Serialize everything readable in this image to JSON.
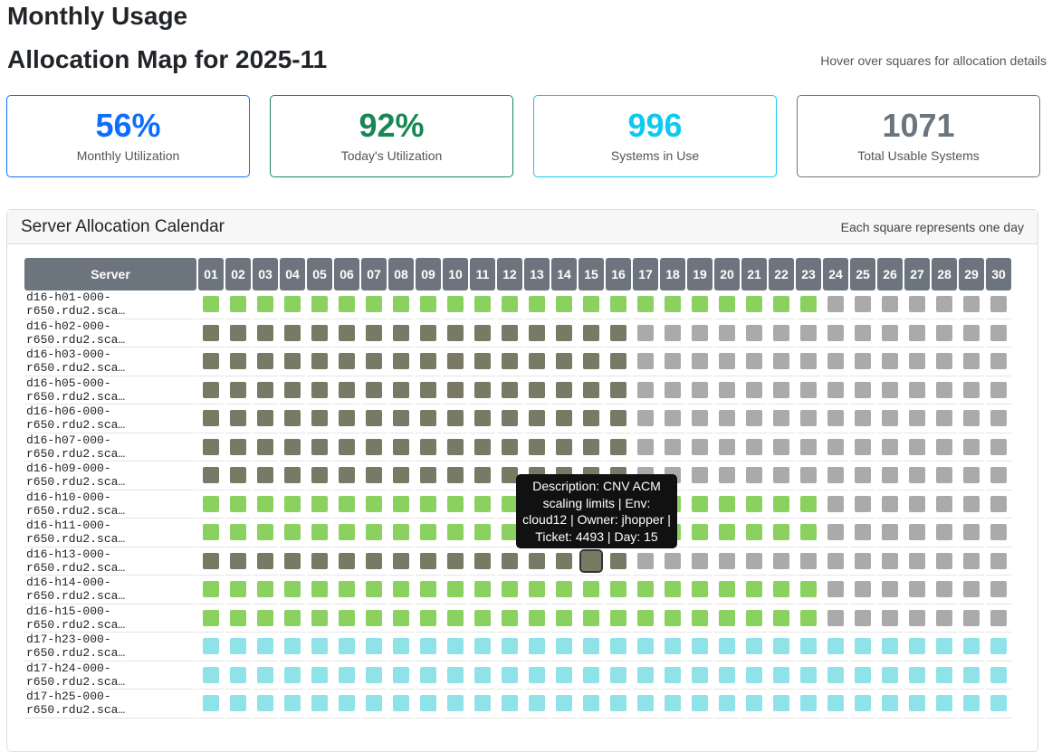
{
  "title": "Monthly Usage",
  "subtitle": "Allocation Map for 2025-11",
  "hint": "Hover over squares for allocation details",
  "cards": [
    {
      "value": "56%",
      "label": "Monthly Utilization",
      "color": "#0d6efd"
    },
    {
      "value": "92%",
      "label": "Today's Utilization",
      "color": "#198754"
    },
    {
      "value": "996",
      "label": "Systems in Use",
      "color": "#0dcaf0"
    },
    {
      "value": "1071",
      "label": "Total Usable Systems",
      "color": "#6c757d"
    }
  ],
  "panel": {
    "title": "Server Allocation Calendar",
    "note": "Each square represents one day"
  },
  "table": {
    "server_header": "Server",
    "days": [
      "01",
      "02",
      "03",
      "04",
      "05",
      "06",
      "07",
      "08",
      "09",
      "10",
      "11",
      "12",
      "13",
      "14",
      "15",
      "16",
      "17",
      "18",
      "19",
      "20",
      "21",
      "22",
      "23",
      "24",
      "25",
      "26",
      "27",
      "28",
      "29",
      "30"
    ],
    "rows": [
      {
        "name": "d16-h01-000-r650.rdu2.sca…",
        "type": "green",
        "days": 23
      },
      {
        "name": "d16-h02-000-r650.rdu2.sca…",
        "type": "gray",
        "days": 16
      },
      {
        "name": "d16-h03-000-r650.rdu2.sca…",
        "type": "gray",
        "days": 16
      },
      {
        "name": "d16-h05-000-r650.rdu2.sca…",
        "type": "gray",
        "days": 16
      },
      {
        "name": "d16-h06-000-r650.rdu2.sca…",
        "type": "gray",
        "days": 16
      },
      {
        "name": "d16-h07-000-r650.rdu2.sca…",
        "type": "gray",
        "days": 16
      },
      {
        "name": "d16-h09-000-r650.rdu2.sca…",
        "type": "gray",
        "days": 16
      },
      {
        "name": "d16-h10-000-r650.rdu2.sca…",
        "type": "green",
        "days": 23
      },
      {
        "name": "d16-h11-000-r650.rdu2.sca…",
        "type": "green",
        "days": 23
      },
      {
        "name": "d16-h13-000-r650.rdu2.sca…",
        "type": "gray",
        "days": 16,
        "hover": 15
      },
      {
        "name": "d16-h14-000-r650.rdu2.sca…",
        "type": "green",
        "days": 23
      },
      {
        "name": "d16-h15-000-r650.rdu2.sca…",
        "type": "green",
        "days": 23
      },
      {
        "name": "d17-h23-000-r650.rdu2.sca…",
        "type": "cyan",
        "days": 30
      },
      {
        "name": "d17-h24-000-r650.rdu2.sca…",
        "type": "cyan",
        "days": 30
      },
      {
        "name": "d17-h25-000-r650.rdu2.sca…",
        "type": "cyan",
        "days": 30
      }
    ]
  },
  "tooltip": "Description: CNV ACM scaling limits | Env: cloud12 | Owner: jhopper | Ticket: 4493 | Day: 15",
  "icons": {
    "green": "deer-icon",
    "gray": "badger-icon",
    "cyan": "hamster-icon"
  }
}
